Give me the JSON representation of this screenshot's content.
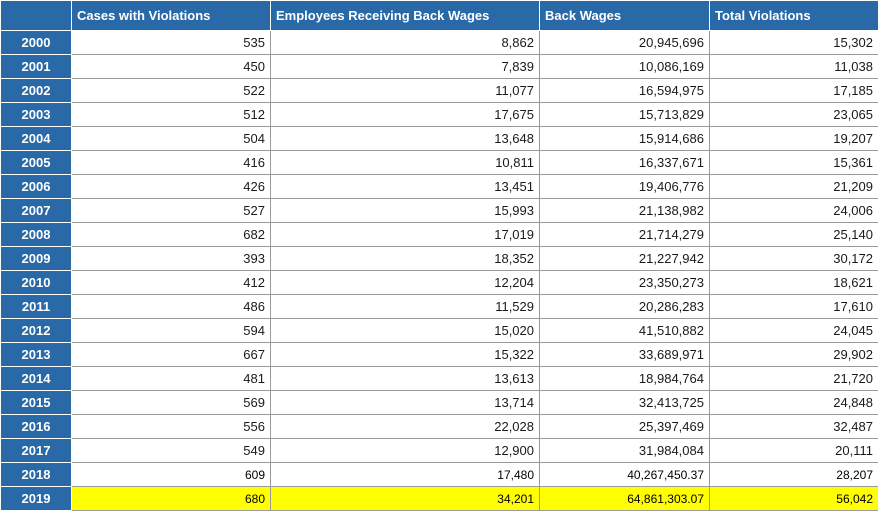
{
  "headers": [
    "Cases with Violations",
    "Employees Receiving Back Wages",
    "Back Wages",
    "Total Violations"
  ],
  "rows": [
    {
      "year": "2000",
      "cells": [
        "535",
        "8,862",
        "20,945,696",
        "15,302"
      ]
    },
    {
      "year": "2001",
      "cells": [
        "450",
        "7,839",
        "10,086,169",
        "11,038"
      ]
    },
    {
      "year": "2002",
      "cells": [
        "522",
        "11,077",
        "16,594,975",
        "17,185"
      ]
    },
    {
      "year": "2003",
      "cells": [
        "512",
        "17,675",
        "15,713,829",
        "23,065"
      ]
    },
    {
      "year": "2004",
      "cells": [
        "504",
        "13,648",
        "15,914,686",
        "19,207"
      ]
    },
    {
      "year": "2005",
      "cells": [
        "416",
        "10,811",
        "16,337,671",
        "15,361"
      ]
    },
    {
      "year": "2006",
      "cells": [
        "426",
        "13,451",
        "19,406,776",
        "21,209"
      ]
    },
    {
      "year": "2007",
      "cells": [
        "527",
        "15,993",
        "21,138,982",
        "24,006"
      ]
    },
    {
      "year": "2008",
      "cells": [
        "682",
        "17,019",
        "21,714,279",
        "25,140"
      ]
    },
    {
      "year": "2009",
      "cells": [
        "393",
        "18,352",
        "21,227,942",
        "30,172"
      ]
    },
    {
      "year": "2010",
      "cells": [
        "412",
        "12,204",
        "23,350,273",
        "18,621"
      ]
    },
    {
      "year": "2011",
      "cells": [
        "486",
        "11,529",
        "20,286,283",
        "17,610"
      ]
    },
    {
      "year": "2012",
      "cells": [
        "594",
        "15,020",
        "41,510,882",
        "24,045"
      ]
    },
    {
      "year": "2013",
      "cells": [
        "667",
        "15,322",
        "33,689,971",
        "29,902"
      ]
    },
    {
      "year": "2014",
      "cells": [
        "481",
        "13,613",
        "18,984,764",
        "21,720"
      ]
    },
    {
      "year": "2015",
      "cells": [
        "569",
        "13,714",
        "32,413,725",
        "24,848"
      ]
    },
    {
      "year": "2016",
      "cells": [
        "556",
        "22,028",
        "25,397,469",
        "32,487"
      ]
    },
    {
      "year": "2017",
      "cells": [
        "549",
        "12,900",
        "31,984,084",
        "20,111"
      ]
    },
    {
      "year": "2018",
      "cells": [
        "609",
        "17,480",
        "40,267,450.37",
        "28,207"
      ]
    },
    {
      "year": "2019",
      "cells": [
        "680",
        "34,201",
        "64,861,303.07",
        "56,042"
      ]
    }
  ],
  "colors": {
    "header_bg": "#2a69a8",
    "header_text": "#ffffff",
    "highlight_row": "#ffff00"
  }
}
